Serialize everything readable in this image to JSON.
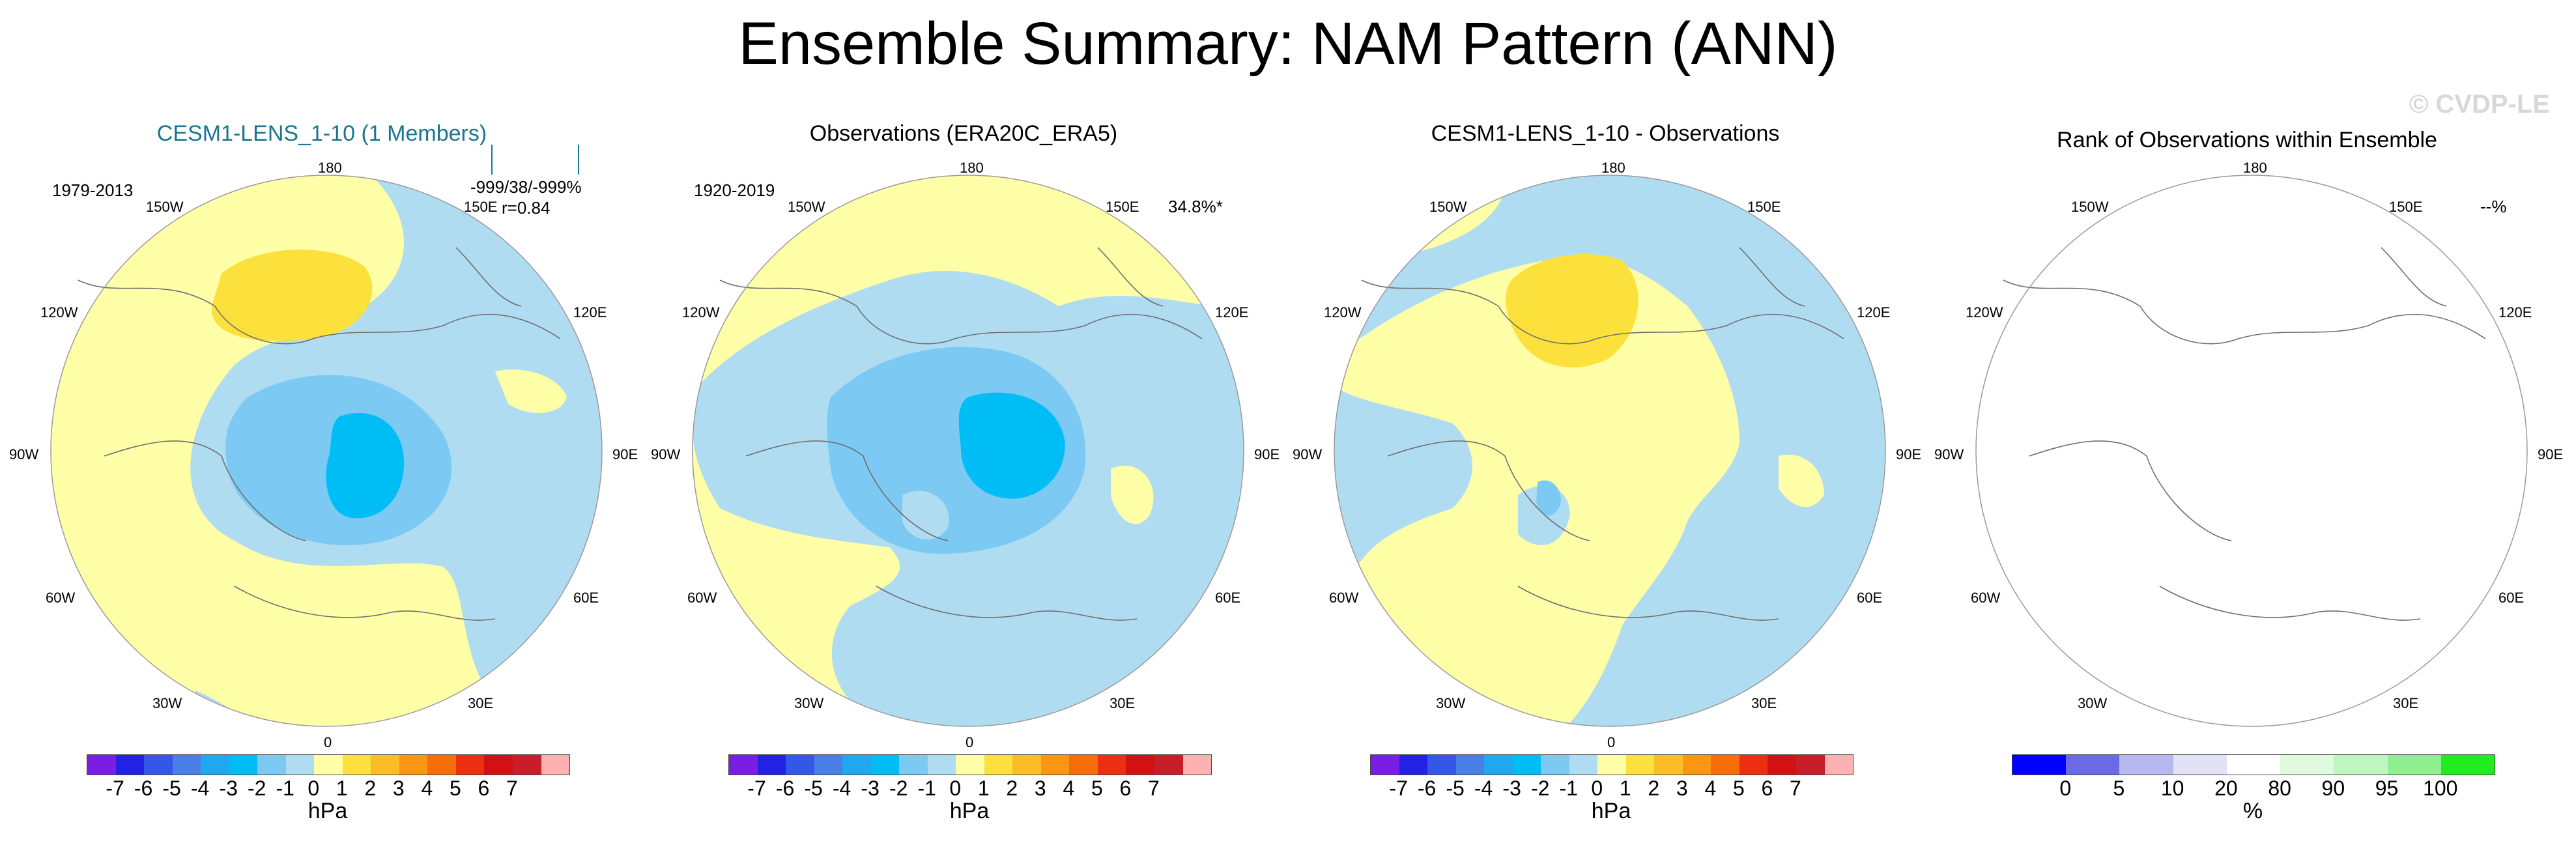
{
  "title": "Ensemble Summary: NAM Pattern (ANN)",
  "watermark": "© CVDP-LE",
  "lon_labels": [
    "180",
    "150E",
    "120E",
    "90E",
    "60E",
    "30E",
    "0",
    "30W",
    "60W",
    "90W",
    "120W",
    "150W"
  ],
  "colors": {
    "title_teal": "#1a7590",
    "land_outline": "#6f6f6f",
    "pattern_scale": [
      "#7a1ee6",
      "#2222e6",
      "#3557e8",
      "#4a7fe8",
      "#1fa8f0",
      "#00bdf5",
      "#7ccaf3",
      "#b0dcf2",
      "#ffffa8",
      "#fce03c",
      "#fbbd25",
      "#fb9614",
      "#f66d0a",
      "#ee2e10",
      "#d21212",
      "#c81e2a",
      "#ffb0b0"
    ],
    "rank_scale": [
      "#0000ff",
      "#6a6ae6",
      "#b8b8f0",
      "#e2e2f6",
      "#ffffff",
      "#e0fae0",
      "#bff5bf",
      "#8ef08e",
      "#20ec20"
    ]
  },
  "panels": [
    {
      "title": "CESM1-LENS_1-10 (1 Members)",
      "period": "1979-2013",
      "stats": [
        "-999/38/-999%",
        "r=0.84"
      ],
      "colorbar_ticks": [
        "-7",
        "-6",
        "-5",
        "-4",
        "-3",
        "-2",
        "-1",
        "0",
        "1",
        "2",
        "3",
        "4",
        "5",
        "6",
        "7"
      ],
      "units": "hPa"
    },
    {
      "title": "Observations (ERA20C_ERA5)",
      "period": "1920-2019",
      "stats": [
        "34.8%*"
      ],
      "colorbar_ticks": [
        "-7",
        "-6",
        "-5",
        "-4",
        "-3",
        "-2",
        "-1",
        "0",
        "1",
        "2",
        "3",
        "4",
        "5",
        "6",
        "7"
      ],
      "units": "hPa"
    },
    {
      "title": "CESM1-LENS_1-10 - Observations",
      "period": "",
      "stats": [],
      "colorbar_ticks": [
        "-7",
        "-6",
        "-5",
        "-4",
        "-3",
        "-2",
        "-1",
        "0",
        "1",
        "2",
        "3",
        "4",
        "5",
        "6",
        "7"
      ],
      "units": "hPa"
    },
    {
      "title": "Rank of Observations within Ensemble",
      "period": "",
      "stats": [
        "--%"
      ],
      "colorbar_ticks": [
        "0",
        "5",
        "10",
        "20",
        "80",
        "90",
        "95",
        "100"
      ],
      "units": "%"
    }
  ]
}
